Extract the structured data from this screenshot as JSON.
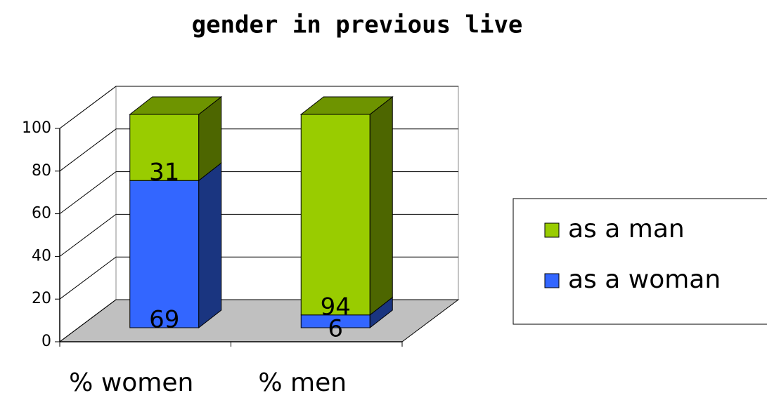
{
  "chart_data": {
    "type": "bar3d_stacked",
    "title": "gender in previous live",
    "categories": [
      "% women",
      "% men"
    ],
    "series": [
      {
        "name": "as a woman",
        "color": "#3366ff",
        "side_color": "#1a3580",
        "values": [
          69,
          6
        ]
      },
      {
        "name": "as a man",
        "color": "#99cc00",
        "side_color": "#4d6600",
        "values": [
          31,
          94
        ]
      }
    ],
    "ylim": [
      0,
      100
    ],
    "yticks": [
      0,
      20,
      40,
      60,
      80,
      100
    ],
    "grid": true,
    "legend": "right"
  }
}
